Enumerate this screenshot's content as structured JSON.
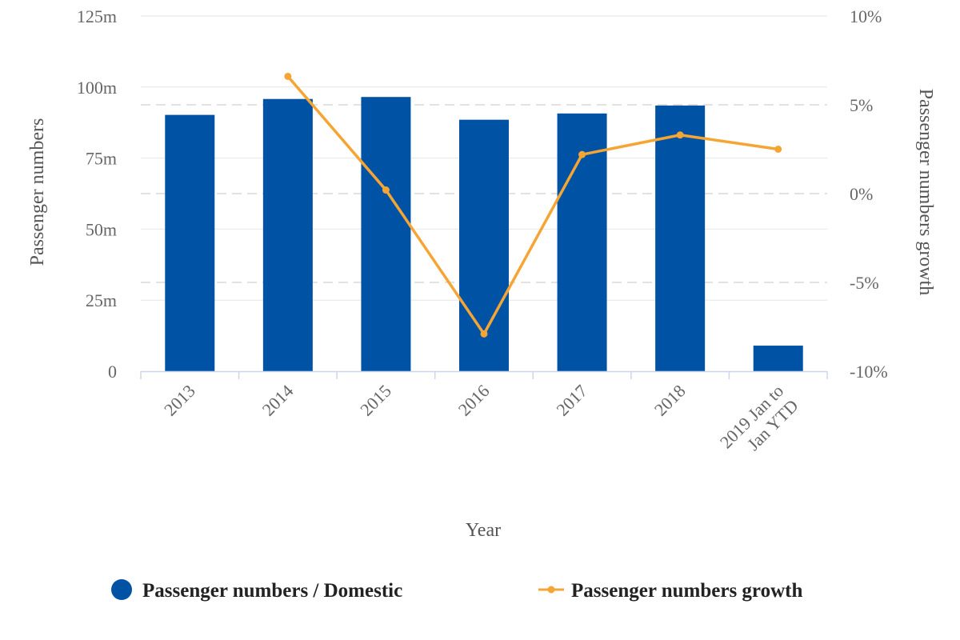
{
  "chart_data": {
    "type": "bar",
    "categories": [
      "2013",
      "2014",
      "2015",
      "2016",
      "2017",
      "2018",
      "2019 Jan to Jan YTD"
    ],
    "category_lines": [
      [
        "2013"
      ],
      [
        "2014"
      ],
      [
        "2015"
      ],
      [
        "2016"
      ],
      [
        "2017"
      ],
      [
        "2018"
      ],
      [
        "2019 Jan to",
        "Jan YTD"
      ]
    ],
    "series": [
      {
        "name": "Passenger numbers / Domestic",
        "type": "bar",
        "axis": "left",
        "color": "#0052a5",
        "values": [
          90.2,
          95.8,
          96.5,
          88.5,
          90.7,
          93.5,
          9.0
        ]
      },
      {
        "name": "Passenger numbers growth",
        "type": "line",
        "axis": "right",
        "color": "#f5a533",
        "values": [
          null,
          6.6,
          0.2,
          -7.9,
          2.2,
          3.3,
          2.5
        ]
      }
    ],
    "xlabel": "Year",
    "ylabel": "Passenger numbers",
    "ylabel_right": "Passenger numbers growth",
    "ylim": [
      0,
      125
    ],
    "ylim_right": [
      -10,
      10
    ],
    "yticks": [
      "0",
      "25m",
      "50m",
      "75m",
      "100m",
      "125m"
    ],
    "yticks_right": [
      "-10%",
      "-5%",
      "0%",
      "5%",
      "10%"
    ],
    "grid": true,
    "legend_position": "bottom"
  }
}
